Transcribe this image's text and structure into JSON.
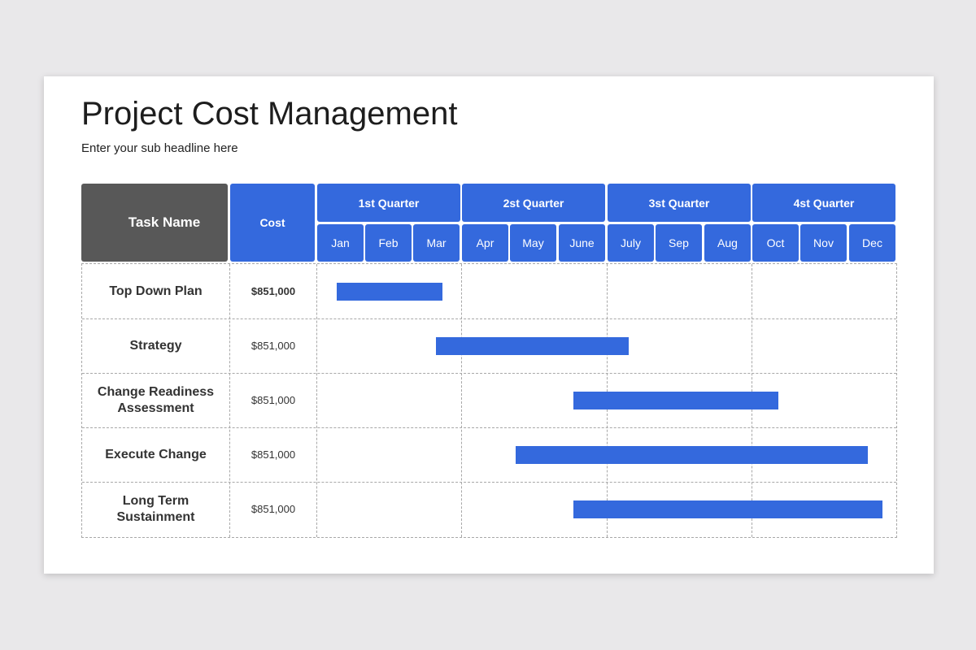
{
  "slide": {
    "title": "Project Cost Management",
    "subtitle": "Enter your sub headline here"
  },
  "table": {
    "task_header": "Task Name",
    "cost_header": "Cost",
    "quarters": [
      "1st Quarter",
      "2st Quarter",
      "3st Quarter",
      "4st Quarter"
    ],
    "months": [
      "Jan",
      "Feb",
      "Mar",
      "Apr",
      "May",
      "June",
      "July",
      "Sep",
      "Aug",
      "Oct",
      "Nov",
      "Dec"
    ]
  },
  "colors": {
    "accent": "#3469dd",
    "header_dark": "#585858"
  },
  "chart_data": {
    "type": "bar",
    "orientation": "horizontal-gantt",
    "x_unit": "month index (0 = start of Jan, 12 = end of Dec)",
    "xlim": [
      0,
      12
    ],
    "tasks": [
      {
        "name": "Top Down Plan",
        "cost": "$851,000",
        "start": 0.4,
        "end": 2.6
      },
      {
        "name": "Strategy",
        "cost": "$851,000",
        "start": 2.45,
        "end": 6.45
      },
      {
        "name": "Change Readiness Assessment",
        "cost": "$851,000",
        "start": 5.3,
        "end": 9.55
      },
      {
        "name": "Execute Change",
        "cost": "$851,000",
        "start": 4.1,
        "end": 11.4
      },
      {
        "name": "Long Term Sustainment",
        "cost": "$851,000",
        "start": 5.3,
        "end": 11.7
      }
    ]
  }
}
